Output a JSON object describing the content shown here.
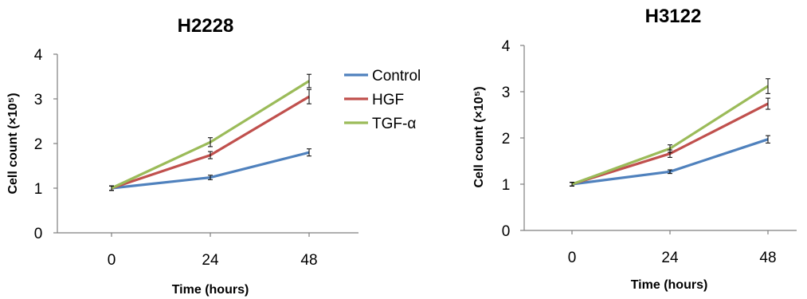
{
  "chart_data": [
    {
      "type": "line",
      "title": "H2228",
      "xlabel": "Time (hours)",
      "ylabel": "Cell count (×10⁵)",
      "categories": [
        "0",
        "24",
        "48"
      ],
      "ylim": [
        0,
        4
      ],
      "yticks": [
        "0",
        "1",
        "2",
        "3",
        "4"
      ],
      "legend": "right",
      "series": [
        {
          "name": "Control",
          "color": "#4f81bd",
          "values": [
            1.0,
            1.24,
            1.8
          ],
          "errors": [
            0.05,
            0.05,
            0.08
          ]
        },
        {
          "name": "HGF",
          "color": "#c0504d",
          "values": [
            1.0,
            1.74,
            3.05
          ],
          "errors": [
            0.05,
            0.08,
            0.16
          ]
        },
        {
          "name": "TGF-α",
          "color": "#9bbb59",
          "values": [
            1.0,
            2.03,
            3.4
          ],
          "errors": [
            0.05,
            0.1,
            0.15
          ]
        }
      ]
    },
    {
      "type": "line",
      "title": "H3122",
      "xlabel": "Time (hours)",
      "ylabel": "Cell count (×10⁵)",
      "categories": [
        "0",
        "24",
        "48"
      ],
      "ylim": [
        0,
        4
      ],
      "yticks": [
        "0",
        "1",
        "2",
        "3",
        "4"
      ],
      "legend": "none",
      "series": [
        {
          "name": "Control",
          "color": "#4f81bd",
          "values": [
            1.0,
            1.27,
            1.97
          ],
          "errors": [
            0.04,
            0.04,
            0.08
          ]
        },
        {
          "name": "HGF",
          "color": "#c0504d",
          "values": [
            1.0,
            1.66,
            2.74
          ],
          "errors": [
            0.04,
            0.08,
            0.12
          ]
        },
        {
          "name": "TGF-α",
          "color": "#9bbb59",
          "values": [
            1.0,
            1.77,
            3.12
          ],
          "errors": [
            0.04,
            0.08,
            0.16
          ]
        }
      ]
    }
  ]
}
